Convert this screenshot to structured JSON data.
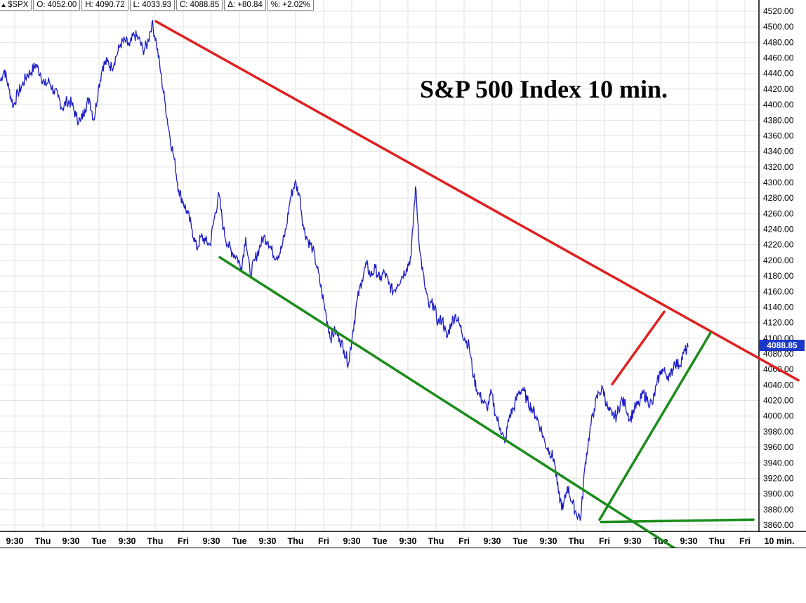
{
  "header": {
    "symbol": "$SPX",
    "open": "O: 4052.00",
    "high": "H: 4090.72",
    "low": "L: 4033.93",
    "close": "C: 4088.85",
    "change": "Δ: +80.84",
    "percent": "%: +2.02%"
  },
  "last_price_label": "4088.85",
  "interval_label": "10 min.",
  "chart_data": {
    "type": "line",
    "title": "S&P 500 Index 10 min.",
    "y_ticks": [
      3860,
      3880,
      3900,
      3920,
      3940,
      3960,
      3980,
      4000,
      4020,
      4040,
      4060,
      4080,
      4100,
      4120,
      4140,
      4160,
      4180,
      4200,
      4220,
      4240,
      4260,
      4280,
      4300,
      4320,
      4340,
      4360,
      4380,
      4400,
      4420,
      4440,
      4460,
      4480,
      4500,
      4520
    ],
    "ylim": [
      3856,
      4526
    ],
    "x_tick_labels": [
      "9:30",
      "Thu",
      "9:30",
      "Tue",
      "9:30",
      "Thu",
      "Fri",
      "9:30",
      "Tue",
      "9:30",
      "Thu",
      "Fri",
      "9:30",
      "Tue",
      "9:30",
      "Thu",
      "Fri",
      "9:30",
      "Tue",
      "9:30",
      "Thu",
      "Fri",
      "9:30",
      "Tue",
      "9:30",
      "Thu",
      "Fri"
    ],
    "grid": true,
    "series": [
      {
        "color": "#1c1cc8",
        "values": [
          4430,
          4445,
          4420,
          4398,
          4415,
          4425,
          4438,
          4442,
          4452,
          4440,
          4425,
          4430,
          4418,
          4410,
          4395,
          4405,
          4402,
          4385,
          4378,
          4395,
          4408,
          4380,
          4420,
          4450,
          4455,
          4448,
          4462,
          4478,
          4482,
          4475,
          4490,
          4485,
          4470,
          4478,
          4505,
          4480,
          4440,
          4400,
          4360,
          4330,
          4290,
          4275,
          4260,
          4240,
          4215,
          4230,
          4225,
          4220,
          4255,
          4285,
          4240,
          4220,
          4210,
          4205,
          4190,
          4230,
          4180,
          4200,
          4215,
          4230,
          4225,
          4210,
          4205,
          4215,
          4240,
          4280,
          4300,
          4285,
          4240,
          4225,
          4215,
          4190,
          4160,
          4130,
          4100,
          4110,
          4100,
          4085,
          4068,
          4110,
          4150,
          4175,
          4195,
          4180,
          4190,
          4175,
          4185,
          4170,
          4160,
          4170,
          4180,
          4190,
          4205,
          4295,
          4210,
          4170,
          4140,
          4145,
          4120,
          4125,
          4100,
          4120,
          4130,
          4115,
          4100,
          4090,
          4050,
          4030,
          4020,
          4010,
          4030,
          4000,
          3985,
          3965,
          4000,
          4010,
          4030,
          4035,
          4020,
          4010,
          4000,
          3985,
          3965,
          3955,
          3945,
          3900,
          3880,
          3910,
          3890,
          3875,
          3870,
          3940,
          3980,
          4010,
          4030,
          4035,
          4010,
          4000,
          4000,
          4020,
          4015,
          3995,
          4010,
          4015,
          4030,
          4020,
          4015,
          4040,
          4060,
          4055,
          4050,
          4070,
          4065,
          4080,
          4088.85
        ]
      }
    ],
    "trendlines": [
      {
        "color": "#e02020",
        "from": [
          "Thu",
          4507
        ],
        "to": [
          "Thu",
          4046
        ]
      },
      {
        "color": "#e02020",
        "from": [
          "Fri",
          4041
        ],
        "to": [
          "Tue",
          4134
        ]
      },
      {
        "color": "#1a8c1a",
        "from": [
          "9:30",
          4204
        ],
        "to": [
          "Fri",
          3795
        ]
      },
      {
        "color": "#1a8c1a",
        "from": [
          "Fri",
          3867
        ],
        "to": [
          "9:30",
          4107
        ]
      },
      {
        "color": "#1a8c1a",
        "from": [
          "Fri",
          3864
        ],
        "to": [
          "Fri",
          3867
        ]
      }
    ]
  }
}
